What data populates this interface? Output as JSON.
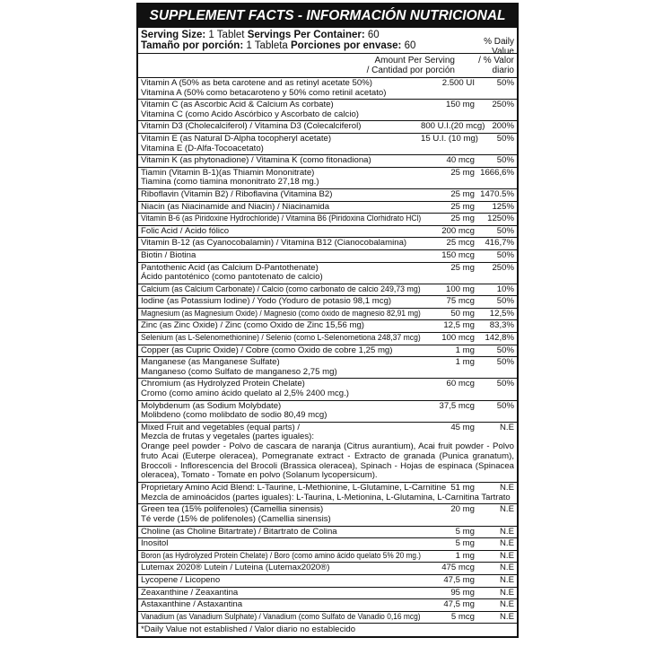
{
  "title": "SUPPLEMENT FACTS - INFORMACIÓN NUTRICIONAL",
  "serving": {
    "line1": {
      "size_label": "Serving Size:",
      "size_value": " 1 Tablet ",
      "per_label": "Servings Per Container:",
      "per_value": " 60"
    },
    "line2": {
      "size_label": "Tamaño por porción:",
      "size_value": " 1 Tableta ",
      "per_label": "Porciones por envase:",
      "per_value": " 60"
    }
  },
  "columns": {
    "amount": [
      "Amount Per Serving",
      "/ Cantidad por porción"
    ],
    "dv": [
      "% Daily Value",
      "/ % Valor diario"
    ]
  },
  "rows": [
    {
      "lines": [
        "Vitamin A (50% as beta carotene and as retinyl acetate 50%)",
        "Vitamina A (50% como betacaroteno y 50% como retinil acetato)"
      ],
      "amount": "2.500 UI",
      "dv": "50%"
    },
    {
      "lines": [
        "Vitamin C (as Ascorbic Acid & Calcium As corbate)",
        "Vitamina C (como Acido Ascórbico y Ascorbato de calcio)"
      ],
      "amount": "150 mg",
      "dv": "250%"
    },
    {
      "lines": [
        "Vitamin D3 (Cholecalciferol) / Vitamina D3 (Colecalciferol)"
      ],
      "amount": "800 U.I.(20 mcg)",
      "dv": "200%"
    },
    {
      "lines": [
        "Vitamin E (as Natural D-Alpha tocopheryl acetate)",
        "Vitamina E (D-Alfa-Tocoacetato)"
      ],
      "amount": "15 U.I. (10 mg)",
      "dv": "50%"
    },
    {
      "lines": [
        "Vitamin K (as phytonadione) / Vitamina K  (como fitonadiona)"
      ],
      "amount": "40 mcg",
      "dv": "50%"
    },
    {
      "lines": [
        "Tiamin (Vitamin B-1)(as Thiamin Mononitrate)",
        "Tiamina (como tiamina mononitrato 27,18 mg.)"
      ],
      "amount": "25 mg",
      "dv": "1666,6%"
    },
    {
      "lines": [
        "Riboflavin (Vitamin B2) / Riboflavina (Vitamina B2)"
      ],
      "amount": "25 mg",
      "dv": "1470.5%"
    },
    {
      "lines": [
        "Niacin (as Niacinamide and Niacin) / Niacinamida"
      ],
      "amount": "25 mg",
      "dv": "125%"
    },
    {
      "lines": [
        "Vitamin B-6 (as Piridoxine Hydrochloride) / Vitamina B6 (Piridoxina Clorhidrato HCl)"
      ],
      "amount": "25 mg",
      "dv": "1250%"
    },
    {
      "lines": [
        "Folic Acid / Ácido fólico"
      ],
      "amount": "200 mcg",
      "dv": "50%"
    },
    {
      "lines": [
        "Vitamin B-12 (as Cyanocobalamin) / Vitamina B12 (Cianocobalamina)"
      ],
      "amount": "25 mcg",
      "dv": "416,7%"
    },
    {
      "lines": [
        "Biotin / Biotina"
      ],
      "amount": "150 mcg",
      "dv": "50%"
    },
    {
      "lines": [
        "Pantothenic Acid (as Calcium D-Pantothenate)",
        "Ácido pantoténico (como pantotenato de calcio)"
      ],
      "amount": "25 mg",
      "dv": "250%"
    },
    {
      "lines": [
        "Calcium (as Calcium Carbonate) / Calcio (como carbonato de calcio 249,73 mg)"
      ],
      "amount": "100 mg",
      "dv": "10%"
    },
    {
      "lines": [
        "Iodine (as Potassium Iodine) / Yodo (Yoduro de potasio 98,1 mcg)"
      ],
      "amount": "75 mcg",
      "dv": "50%"
    },
    {
      "lines": [
        "Magnesium (as Magnesium Oxide) / Magnesio (como óxido de magnesio 82,91 mg)"
      ],
      "amount": "50 mg",
      "dv": "12,5%"
    },
    {
      "lines": [
        "Zinc (as Zinc Oxide) / Zinc (como Óxido de Zinc 15,56 mg)"
      ],
      "amount": "12,5 mg",
      "dv": "83,3%"
    },
    {
      "lines": [
        "Selenium (as L-Selenomethionine) / Selenio (como L-Selenometiona 248,37 mcg)"
      ],
      "amount": "100 mcg",
      "dv": "142,8%"
    },
    {
      "lines": [
        "Copper (as Cupric Oxide) / Cobre (como Oxido de cobre 1,25 mg)"
      ],
      "amount": "1 mg",
      "dv": "50%"
    },
    {
      "lines": [
        "Manganese (as Manganese Sulfate)",
        "Manganeso (como Sulfato de manganeso 2,75 mg)"
      ],
      "amount": "1 mg",
      "dv": "50%"
    },
    {
      "lines": [
        "Chromium (as Hydrolyzed Protein Chelate)",
        "Cromo (como amino ácido quelato al 2,5% 2400 mcg.)"
      ],
      "amount": "60 mcg",
      "dv": "50%"
    },
    {
      "lines": [
        "Molybdenum (as Sodium Molybdate)",
        "Molibdeno (como molibdato de sodio 80,49 mcg)"
      ],
      "amount": "37,5 mcg",
      "dv": "50%"
    }
  ],
  "mixed": {
    "lines": [
      "Mixed Fruit and vegetables (equal parts) /",
      "Mezcla de frutas y vegetales (partes iguales):"
    ],
    "amount": "45 mg",
    "dv": "N.E",
    "description": "Orange peel powder - Polvo de cascara de naranja (Citrus aurantium), Acai fruit powder - Polvo fruto Acai (Euterpe oleracea), Pomegranate extract - Extracto de granada (Punica granatum), Broccoli - Inflorescencia del Brocoli (Brassica oleracea), Spinach - Hojas de espinaca (Spinacea oleracea), Tomato - Tomate en polvo (Solanum lycopersicum)."
  },
  "rows2": [
    {
      "lines": [
        "Proprietary Amino Acid Blend: L-Taurine, L-Methionine, L-Glutamine, L-Carnitine",
        "Mezcla de aminoácidos (partes iguales): L-Taurina, L-Metionina, L-Glutamina, L-Carnitina Tartrato"
      ],
      "amount": "51 mg",
      "dv": "N.E"
    },
    {
      "lines": [
        "Green tea (15% polifenoles) (Camellia sinensis)",
        "Té verde (15% de polifenoles) (Camellia sinensis)"
      ],
      "amount": "20 mg",
      "dv": "N.E"
    },
    {
      "lines": [
        "Choline (as Choline Bitartrate) / Bitartrato de Colina"
      ],
      "amount": "5 mg",
      "dv": "N.E"
    },
    {
      "lines": [
        "Inositol"
      ],
      "amount": "5 mg",
      "dv": "N.E"
    },
    {
      "lines": [
        "Boron (as Hydrolyzed Protein Chelate) / Boro (como amino ácido quelato 5% 20 mg.)"
      ],
      "amount": "1 mg",
      "dv": "N.E"
    },
    {
      "lines": [
        "Lutemax 2020®  Lutein / Luteina (Lutemax2020®)"
      ],
      "amount": "475 mcg",
      "dv": "N.E"
    },
    {
      "lines": [
        "Lycopene / Licopeno"
      ],
      "amount": "47,5 mg",
      "dv": "N.E"
    },
    {
      "lines": [
        "Zeaxanthine / Zeaxantina"
      ],
      "amount": "95 mg",
      "dv": "N.E"
    },
    {
      "lines": [
        "Astaxanthine / Astaxantina"
      ],
      "amount": "47,5 mg",
      "dv": "N.E"
    },
    {
      "lines": [
        "Vanadium (as Vanadium Sulphate) / Vanadium (como Sulfato de Vanadio 0,16 mcg)"
      ],
      "amount": "5 mcg",
      "dv": "N.E"
    }
  ],
  "footnote": "*Daily Value not established / Valor diario no establecido"
}
